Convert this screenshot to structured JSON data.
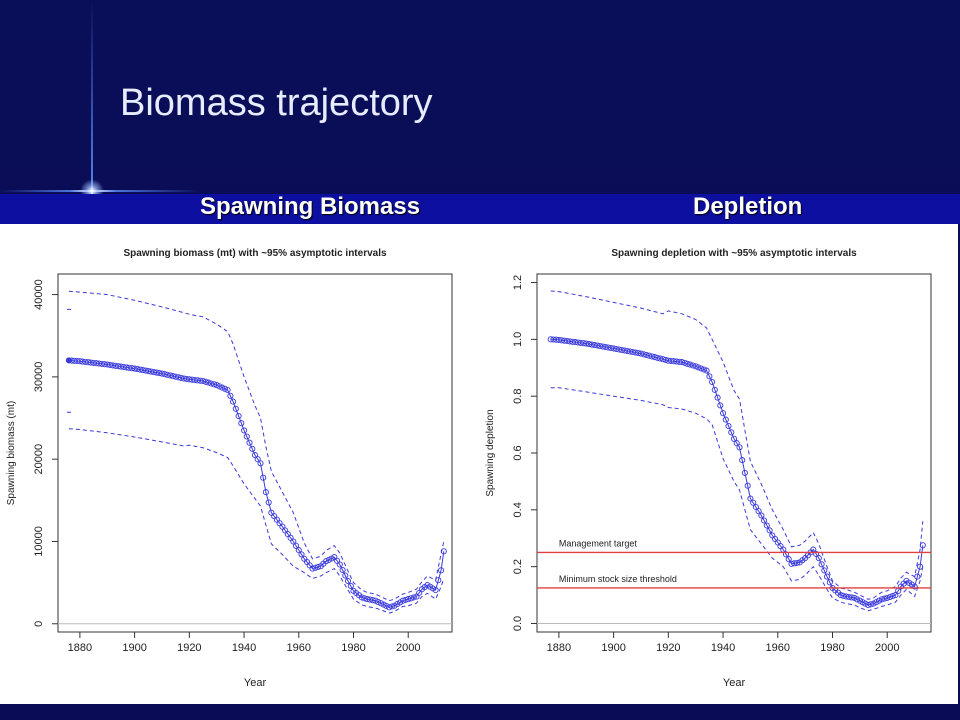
{
  "slide": {
    "title": "Biomass trajectory",
    "subtitle_left": "Spawning Biomass",
    "subtitle_right": "Depletion"
  },
  "chart_data": [
    {
      "type": "line",
      "title": "Spawning biomass (mt) with ~95% asymptotic intervals",
      "xlabel": "Year",
      "ylabel": "Spawning biomass (mt)",
      "xlim": [
        1872,
        2016
      ],
      "ylim": [
        -1000,
        42500
      ],
      "xticks": [
        1880,
        1900,
        1920,
        1940,
        1960,
        1980,
        2000
      ],
      "yticks": [
        0,
        10000,
        20000,
        30000,
        40000
      ],
      "x": [
        1876,
        1880,
        1890,
        1900,
        1910,
        1918,
        1920,
        1925,
        1930,
        1934,
        1936,
        1940,
        1944,
        1946,
        1948,
        1950,
        1954,
        1958,
        1962,
        1965,
        1968,
        1970,
        1973,
        1975,
        1978,
        1980,
        1983,
        1985,
        1988,
        1990,
        1993,
        1995,
        1998,
        2000,
        2003,
        2005,
        2007,
        2010,
        2012,
        2013
      ],
      "series": [
        {
          "values": [
            32000,
            31900,
            31500,
            31000,
            30400,
            29800,
            29700,
            29500,
            29000,
            28400,
            27000,
            23500,
            20500,
            19500,
            16000,
            13500,
            11800,
            10000,
            7900,
            6700,
            7000,
            7600,
            8100,
            7200,
            5200,
            4000,
            3200,
            3000,
            2800,
            2500,
            2000,
            2200,
            2800,
            3000,
            3300,
            4200,
            4700,
            4100,
            6500,
            8800
          ]
        },
        {
          "values": [
            40400,
            40300,
            40000,
            39300,
            38500,
            37800,
            37600,
            37300,
            36400,
            35500,
            34000,
            30000,
            26500,
            25000,
            21500,
            18500,
            16000,
            13500,
            9800,
            7900,
            8200,
            8900,
            9500,
            8600,
            6400,
            5000,
            4100,
            3800,
            3600,
            3300,
            2800,
            3000,
            3600,
            3800,
            4200,
            5100,
            5800,
            5300,
            8500,
            10000
          ]
        },
        {
          "values": [
            23700,
            23600,
            23200,
            22700,
            22100,
            21600,
            21700,
            21400,
            20800,
            20200,
            19200,
            17000,
            15200,
            14300,
            12000,
            9700,
            8400,
            7000,
            6200,
            5500,
            5800,
            6200,
            6700,
            5800,
            4100,
            3000,
            2300,
            2100,
            1900,
            1700,
            1300,
            1500,
            2100,
            2200,
            2500,
            3300,
            3700,
            3000,
            4500,
            5500
          ]
        }
      ],
      "initial_point": {
        "x": 1876,
        "y": 32000
      },
      "initial_interval": {
        "x": 1876,
        "lower": 25700,
        "upper": 38200
      }
    },
    {
      "type": "line",
      "title": "Spawning depletion with ~95% asymptotic intervals",
      "xlabel": "Year",
      "ylabel": "Spawning depletion",
      "xlim": [
        1872,
        2016
      ],
      "ylim": [
        -0.03,
        1.23
      ],
      "xticks": [
        1880,
        1900,
        1920,
        1940,
        1960,
        1980,
        2000
      ],
      "yticks": [
        "0.0",
        "0.2",
        "0.4",
        "0.6",
        "0.8",
        "1.0",
        "1.2"
      ],
      "x": [
        1877,
        1880,
        1890,
        1900,
        1910,
        1918,
        1920,
        1925,
        1930,
        1934,
        1936,
        1940,
        1944,
        1946,
        1948,
        1950,
        1954,
        1958,
        1962,
        1965,
        1968,
        1970,
        1973,
        1975,
        1978,
        1980,
        1983,
        1985,
        1988,
        1990,
        1993,
        1995,
        1998,
        2000,
        2003,
        2005,
        2007,
        2010,
        2012,
        2013
      ],
      "series": [
        {
          "values": [
            1.0,
            0.998,
            0.985,
            0.968,
            0.95,
            0.93,
            0.925,
            0.92,
            0.905,
            0.89,
            0.85,
            0.74,
            0.65,
            0.62,
            0.53,
            0.44,
            0.38,
            0.31,
            0.26,
            0.21,
            0.215,
            0.23,
            0.26,
            0.23,
            0.165,
            0.125,
            0.1,
            0.095,
            0.09,
            0.08,
            0.065,
            0.07,
            0.085,
            0.09,
            0.1,
            0.13,
            0.15,
            0.13,
            0.2,
            0.275
          ]
        },
        {
          "values": [
            1.17,
            1.168,
            1.15,
            1.13,
            1.11,
            1.09,
            1.1,
            1.09,
            1.07,
            1.04,
            1.0,
            0.92,
            0.82,
            0.79,
            0.68,
            0.57,
            0.49,
            0.4,
            0.33,
            0.27,
            0.275,
            0.29,
            0.32,
            0.28,
            0.2,
            0.15,
            0.125,
            0.12,
            0.11,
            0.1,
            0.085,
            0.09,
            0.11,
            0.115,
            0.13,
            0.16,
            0.18,
            0.165,
            0.26,
            0.36
          ]
        },
        {
          "values": [
            0.83,
            0.83,
            0.815,
            0.8,
            0.785,
            0.77,
            0.76,
            0.755,
            0.74,
            0.72,
            0.7,
            0.58,
            0.5,
            0.47,
            0.4,
            0.33,
            0.28,
            0.23,
            0.2,
            0.15,
            0.155,
            0.17,
            0.2,
            0.17,
            0.12,
            0.09,
            0.075,
            0.07,
            0.065,
            0.055,
            0.045,
            0.05,
            0.06,
            0.065,
            0.075,
            0.1,
            0.12,
            0.095,
            0.15,
            0.2
          ]
        }
      ],
      "reference_lines": [
        {
          "label": "Management target",
          "y": 0.25,
          "color": "#e04040"
        },
        {
          "label": "Minimum stock size threshold",
          "y": 0.125,
          "color": "#e04040"
        }
      ]
    }
  ],
  "colors": {
    "series": "#3a3adc",
    "reference": "#e04040",
    "zero_line": "#bbbbbb"
  }
}
